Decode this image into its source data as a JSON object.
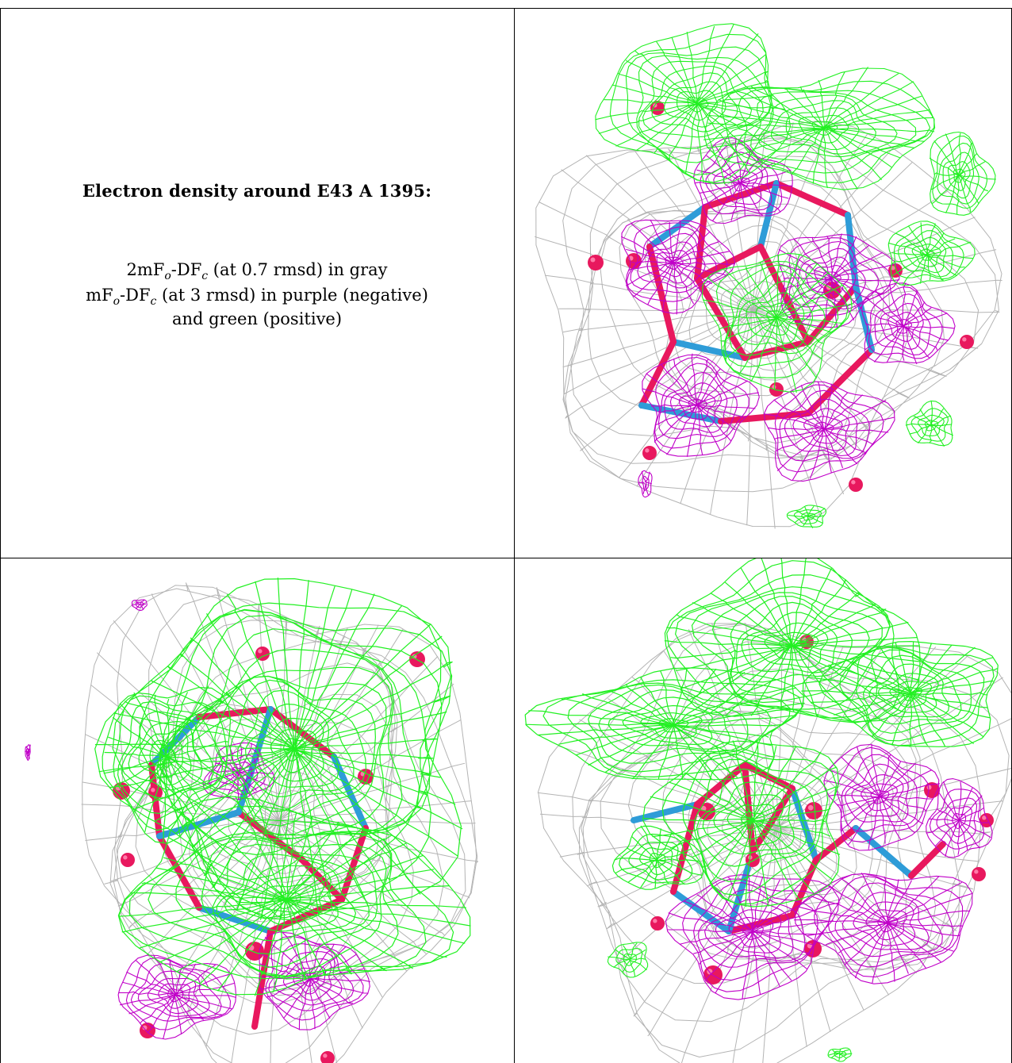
{
  "caption": {
    "title": "Electron density around E43 A 1395:",
    "line1": {
      "a": "2mF",
      "sub1": "o",
      "b": "-DF",
      "sub2": "c",
      "c": " (at 0.7 rmsd) in gray"
    },
    "line2": {
      "a": "mF",
      "sub1": "o",
      "b": "-DF",
      "sub2": "c",
      "c": " (at 3 rmsd) in purple (negative)"
    },
    "line3": "and green (positive)"
  },
  "colors": {
    "gray_mesh": "#b4b4b4",
    "purple_mesh": "#c000c8",
    "green_mesh": "#22f022",
    "atom_oxygen": "#e8185e",
    "bond_carbon": "#2e9cd8",
    "grid_lines": "#000000"
  },
  "panels": [
    {
      "id": "top-right",
      "view": "density-view-1"
    },
    {
      "id": "bottom-left",
      "view": "density-view-2"
    },
    {
      "id": "bottom-right",
      "view": "density-view-3"
    }
  ]
}
